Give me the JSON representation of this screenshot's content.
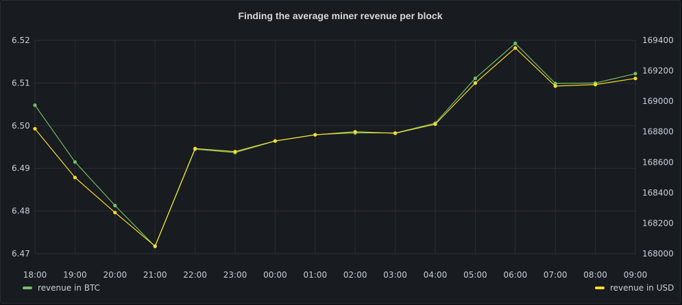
{
  "chart_data": {
    "type": "line",
    "title": "Finding the average miner revenue per block",
    "categories": [
      "18:00",
      "19:00",
      "20:00",
      "21:00",
      "22:00",
      "23:00",
      "00:00",
      "01:00",
      "02:00",
      "03:00",
      "04:00",
      "05:00",
      "06:00",
      "07:00",
      "08:00",
      "09:00"
    ],
    "series": [
      {
        "name": "revenue in BTC",
        "axis": "left",
        "color": "#73bf69",
        "values": [
          6.5048,
          6.4915,
          6.4813,
          6.4717,
          6.4945,
          6.4937,
          6.4964,
          6.4979,
          6.4983,
          6.4983,
          6.5006,
          6.5111,
          6.5193,
          6.5099,
          6.51,
          6.5122
        ]
      },
      {
        "name": "revenue in USD",
        "axis": "right",
        "color": "#fade2a",
        "values": [
          168820,
          168500,
          168270,
          168050,
          168690,
          168670,
          168740,
          168780,
          168800,
          168790,
          168850,
          169120,
          169350,
          169100,
          169110,
          169150
        ]
      }
    ],
    "y_left": {
      "min": 6.47,
      "max": 6.52,
      "ticks": [
        6.47,
        6.48,
        6.49,
        6.5,
        6.51,
        6.52
      ]
    },
    "y_right": {
      "min": 168000,
      "max": 169400,
      "ticks": [
        168000,
        168200,
        168400,
        168600,
        168800,
        169000,
        169200,
        169400
      ]
    },
    "grid": true,
    "legend": [
      "bottom-left",
      "bottom-right"
    ],
    "tick_format_left": "2dp"
  }
}
